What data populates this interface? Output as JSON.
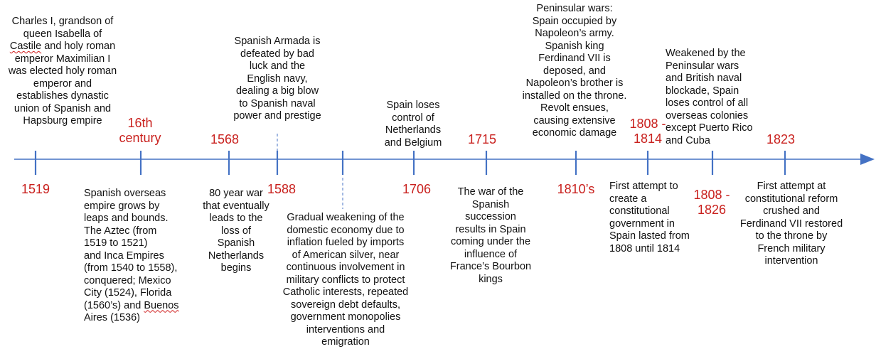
{
  "colors": {
    "axis": "#4472c4",
    "date_text": "#c9211e",
    "body_text": "#111111",
    "spellcheck_underline": "#d02020"
  },
  "dates": {
    "d1519": "1519",
    "d16th": "16th\ncentury",
    "d1568": "1568",
    "d1588": "1588",
    "d1706": "1706",
    "d1715": "1715",
    "d1810s": "1810’s",
    "d1808_1814": "1808 -\n1814",
    "d1808_1826": "1808 -\n1826",
    "d1823": "1823"
  },
  "events": {
    "charles_pre": "Charles I, grandson of\nqueen Isabella of\n",
    "charles_castile": "Castile",
    "charles_post": " and holy roman\nemperor Maximilian I\nwas elected holy roman\nemperor and\nestablishes dynastic\nunion of Spanish and\nHapsburg empire",
    "overseas_pre": "Spanish overseas\nempire grows by\nleaps and bounds.\nThe Aztec (from\n1519 to 1521)\nand Inca Empires\n(from 1540 to 1558),\nconquered; Mexico\nCity (1524), Florida\n(1560’s) and ",
    "overseas_buenos": "Buenos",
    "overseas_post": "\nAires (1536)",
    "eighty_year_war": "80 year war\nthat eventually\nleads to the\nloss of\nSpanish\nNetherlands\nbegins",
    "armada": "Spanish Armada is\ndefeated by bad\nluck and the\nEnglish navy,\ndealing a big blow\nto Spanish naval\npower and prestige",
    "weakening": "Gradual weakening of the\ndomestic economy due to\ninflation fueled by imports\nof American silver, near\ncontinuous involvement in\nmilitary conflicts to protect\nCatholic interests, repeated\nsovereign debt defaults,\ngovernment monopolies\ninterventions and\nemigration",
    "netherlands": "Spain loses\ncontrol of\nNetherlands\nand Belgium",
    "succession": "The war of the\nSpanish\nsuccession\nresults in Spain\ncoming under the\ninfluence of\nFrance’s Bourbon\nkings",
    "peninsular": "Peninsular wars:\nSpain occupied by\nNapoleon’s army.\nSpanish king\nFerdinand VII is\ndeposed, and\nNapoleon’s brother is\ninstalled on the throne.\nRevolt ensues,\ncausing extensive\neconomic damage",
    "first_constitution": "First attempt to\ncreate a\nconstitutional\ngovernment in\nSpain lasted from\n1808 until 1814",
    "weakened_colonies": "Weakened by the\nPeninsular wars\nand British naval\nblockade, Spain\nloses control of all\noverseas colonies\nexcept Puerto Rico\nand Cuba",
    "reform_crushed": "First attempt at\nconstitutional reform\ncrushed and\nFerdinand VII restored\nto the throne by\nFrench military\nintervention"
  }
}
